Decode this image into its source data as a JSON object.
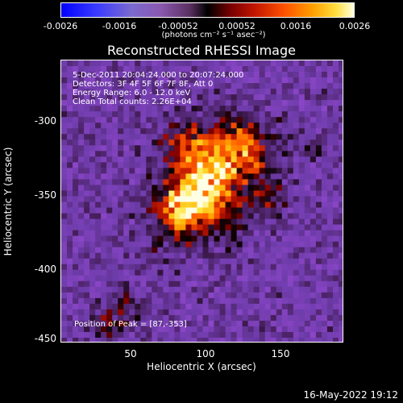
{
  "colorbar": {
    "ticks": [
      "-0.0026",
      "-0.0016",
      "-0.00052",
      "0.00052",
      "0.0016",
      "0.0026"
    ],
    "units": "(photons cm⁻² s⁻¹ asec⁻²)"
  },
  "title": "Reconstructed RHESSI Image",
  "info": {
    "time": "5-Dec-2011 20:04:24.000 to 20:07:24.000",
    "detectors": "Detectors: 3F 4F 5F 6F 7F 8F, Att 0",
    "energy": "Energy Range: 6.0 - 12.0 keV",
    "method": "Clean    Total counts: 2.26E+04"
  },
  "peak": "Position of Peak = [87,-353]",
  "xlabel": "Heliocentric X (arcsec)",
  "ylabel": "Heliocentric Y (arcsec)",
  "datestamp": "16-May-2022 19:12",
  "chart_data": {
    "type": "heatmap",
    "title": "Reconstructed RHESSI Image",
    "xlabel": "Heliocentric X (arcsec)",
    "ylabel": "Heliocentric Y (arcsec)",
    "xlim": [
      2,
      191
    ],
    "ylim": [
      -450,
      -268
    ],
    "x_ticks": [
      50,
      100,
      150
    ],
    "y_ticks": [
      -300,
      -350,
      -400,
      -450
    ],
    "colorbar_range": [
      -0.0026,
      0.0026
    ],
    "peak_position": [
      87,
      -353
    ]
  }
}
